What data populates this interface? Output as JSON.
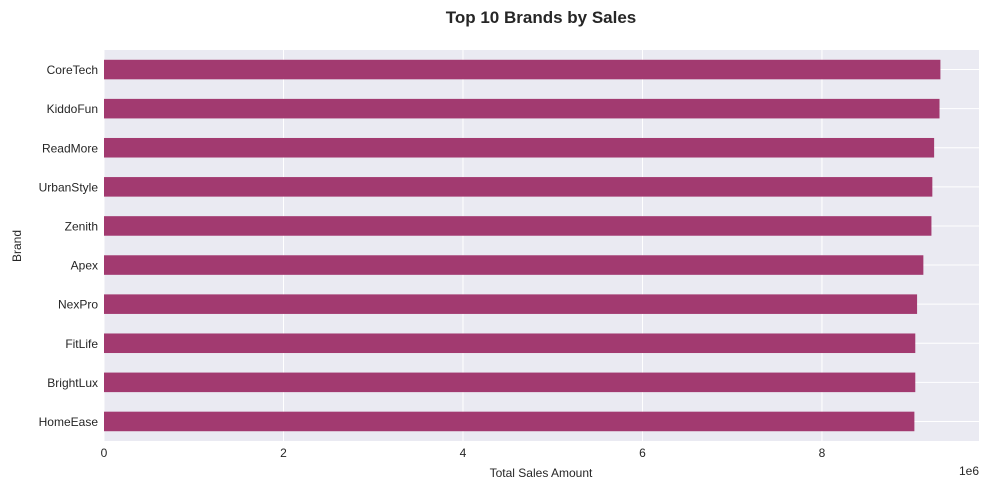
{
  "chart_data": {
    "type": "bar",
    "orientation": "horizontal",
    "title": "Top 10 Brands by Sales",
    "xlabel": "Total Sales Amount",
    "ylabel": "Brand",
    "x_multiplier_label": "1e6",
    "xlim": [
      0,
      9.75
    ],
    "xticks": [
      0,
      2,
      4,
      6,
      8
    ],
    "grid": true,
    "bar_color": "#a23a70",
    "plot_background": "#eaeaf2",
    "categories": [
      "CoreTech",
      "KiddoFun",
      "ReadMore",
      "UrbanStyle",
      "Zenith",
      "Apex",
      "NexPro",
      "FitLife",
      "BrightLux",
      "HomeEase"
    ],
    "values": [
      9.32,
      9.31,
      9.25,
      9.23,
      9.22,
      9.13,
      9.06,
      9.04,
      9.04,
      9.03
    ]
  }
}
